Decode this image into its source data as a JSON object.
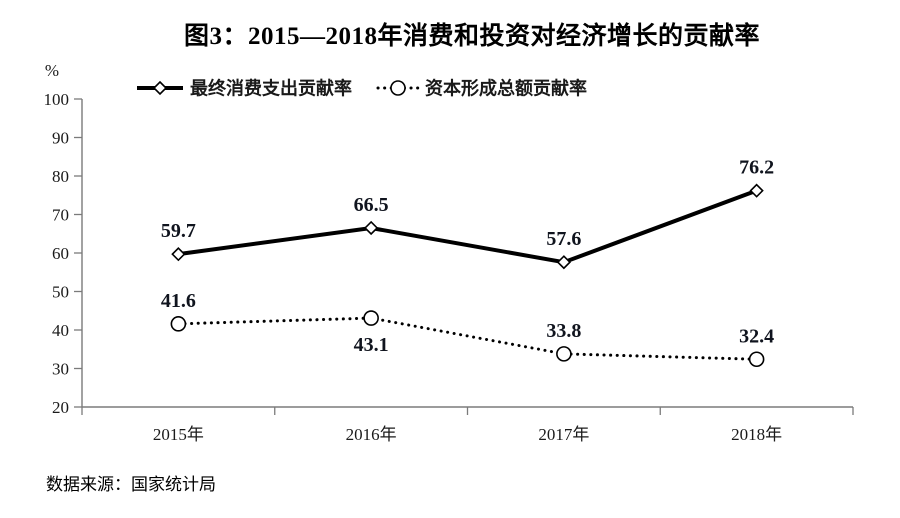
{
  "source_note": "数据来源：国家统计局",
  "colors": {
    "series": "#000000",
    "axis": "#7b7b7b",
    "text": "#1a1a1a",
    "label": "#10141e"
  },
  "chart_data": {
    "type": "line",
    "title": "图3：2015—2018年消费和投资对经济增长的贡献率",
    "xlabel": "",
    "ylabel": "%",
    "ylim": [
      20,
      100
    ],
    "ytick_step": 10,
    "grid": false,
    "legend_position": "top",
    "categories": [
      "2015年",
      "2016年",
      "2017年",
      "2018年"
    ],
    "series": [
      {
        "name": "最终消费支出贡献率",
        "line_style": "solid",
        "marker": "diamond",
        "values": [
          59.7,
          66.5,
          57.6,
          76.2
        ],
        "label_positions": [
          "above",
          "above",
          "above",
          "above"
        ]
      },
      {
        "name": "资本形成总额贡献率",
        "line_style": "dotted",
        "marker": "circle",
        "values": [
          41.6,
          43.1,
          33.8,
          32.4
        ],
        "label_positions": [
          "above",
          "below",
          "above",
          "above"
        ]
      }
    ]
  }
}
